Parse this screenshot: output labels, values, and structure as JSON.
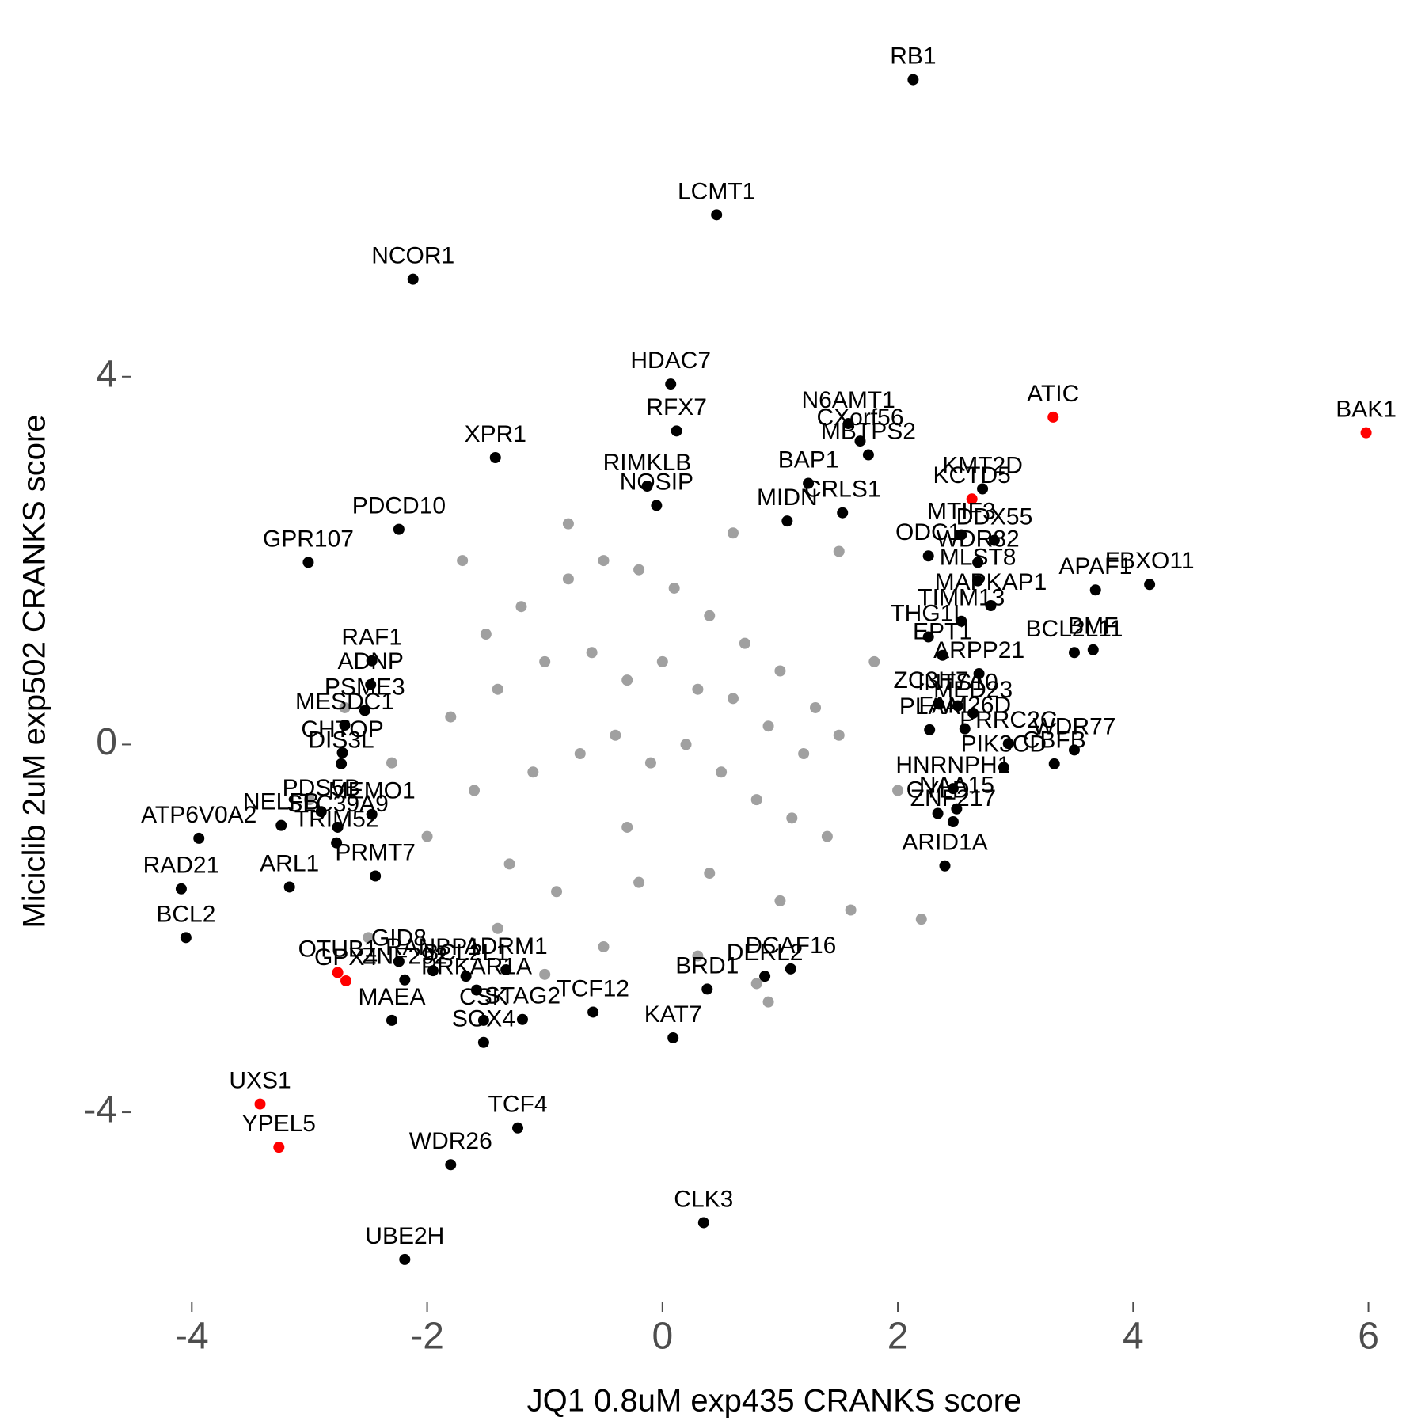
{
  "chart_data": {
    "type": "scatter",
    "xlabel": "JQ1 0.8uM exp435 CRANKS score",
    "ylabel": "Miciclib 2uM exp502 CRANKS score",
    "xlim": [
      -4.5,
      6.4
    ],
    "ylim": [
      -6.1,
      7.7
    ],
    "xticks": [
      -4,
      -2,
      0,
      2,
      4,
      6
    ],
    "yticks": [
      -4,
      0,
      4
    ],
    "grid": false,
    "background_points": {
      "color": "#a0a0a0",
      "x": [
        -1.5,
        -1.2,
        -0.8,
        -0.5,
        -0.2,
        0.1,
        0.4,
        0.7,
        1.0,
        1.3,
        -1.8,
        -1.4,
        -1.0,
        -0.6,
        -0.3,
        0.0,
        0.3,
        0.6,
        0.9,
        1.2,
        1.5,
        -1.6,
        -1.1,
        -0.7,
        -0.4,
        -0.1,
        0.2,
        0.5,
        0.8,
        1.1,
        1.4,
        -2.0,
        -1.3,
        -0.9,
        -0.2,
        0.4,
        1.0,
        1.6,
        -0.5,
        0.3,
        -1.0,
        0.8,
        -2.3,
        2.0,
        -0.8,
        0.6,
        -1.7,
        1.8,
        -2.5,
        2.2,
        -3.0,
        -2.7,
        1.5,
        -1.4,
        0.9,
        -0.3
      ],
      "y": [
        1.2,
        1.5,
        1.8,
        2.0,
        1.9,
        1.7,
        1.4,
        1.1,
        0.8,
        0.4,
        0.3,
        0.6,
        0.9,
        1.0,
        0.7,
        0.9,
        0.6,
        0.5,
        0.2,
        -0.1,
        0.1,
        -0.5,
        -0.3,
        -0.1,
        0.1,
        -0.2,
        0.0,
        -0.3,
        -0.6,
        -0.8,
        -1.0,
        -1.0,
        -1.3,
        -1.6,
        -1.5,
        -1.4,
        -1.7,
        -1.8,
        -2.2,
        -2.3,
        -2.5,
        -2.6,
        -0.2,
        -0.5,
        2.4,
        2.3,
        2.0,
        0.9,
        -2.1,
        -1.9,
        -0.6,
        0.4,
        2.1,
        -2.0,
        -2.8,
        -0.9
      ]
    },
    "points": [
      {
        "label": "RB1",
        "x": 2.13,
        "y": 7.23,
        "color": "#000000"
      },
      {
        "label": "LCMT1",
        "x": 0.46,
        "y": 5.76,
        "color": "#000000"
      },
      {
        "label": "NCOR1",
        "x": -2.12,
        "y": 5.06,
        "color": "#000000"
      },
      {
        "label": "HDAC7",
        "x": 0.07,
        "y": 3.92,
        "color": "#000000"
      },
      {
        "label": "ATIC",
        "x": 3.32,
        "y": 3.56,
        "color": "#ff0000"
      },
      {
        "label": "BAK1",
        "x": 5.98,
        "y": 3.39,
        "color": "#ff0000"
      },
      {
        "label": "XPR1",
        "x": -1.42,
        "y": 3.12,
        "color": "#000000"
      },
      {
        "label": "N6AMT1",
        "x": 1.58,
        "y": 3.49,
        "color": "#000000"
      },
      {
        "label": "MBTPS2",
        "x": 1.75,
        "y": 3.15,
        "color": "#000000"
      },
      {
        "label": "CXorf56",
        "x": 1.68,
        "y": 3.3,
        "color": "#000000"
      },
      {
        "label": "RFX7",
        "x": 0.12,
        "y": 3.41,
        "color": "#000000"
      },
      {
        "label": "KMT2D",
        "x": 2.72,
        "y": 2.78,
        "color": "#000000"
      },
      {
        "label": "KCTD5",
        "x": 2.63,
        "y": 2.67,
        "color": "#ff0000"
      },
      {
        "label": "RIMKLB",
        "x": -0.13,
        "y": 2.81,
        "color": "#000000"
      },
      {
        "label": "BAP1",
        "x": 1.24,
        "y": 2.84,
        "color": "#000000"
      },
      {
        "label": "PDCD10",
        "x": -2.24,
        "y": 2.34,
        "color": "#000000"
      },
      {
        "label": "NOSIP",
        "x": -0.05,
        "y": 2.6,
        "color": "#000000"
      },
      {
        "label": "MIDN",
        "x": 1.06,
        "y": 2.43,
        "color": "#000000"
      },
      {
        "label": "CRLS1",
        "x": 1.53,
        "y": 2.52,
        "color": "#000000"
      },
      {
        "label": "DDX55",
        "x": 2.82,
        "y": 2.22,
        "color": "#000000"
      },
      {
        "label": "MTIF3",
        "x": 2.54,
        "y": 2.28,
        "color": "#000000"
      },
      {
        "label": "GPR107",
        "x": -3.01,
        "y": 1.98,
        "color": "#000000"
      },
      {
        "label": "WDR82",
        "x": 2.68,
        "y": 1.98,
        "color": "#000000"
      },
      {
        "label": "APAF1",
        "x": 3.68,
        "y": 1.68,
        "color": "#000000"
      },
      {
        "label": "FBXO11",
        "x": 4.14,
        "y": 1.74,
        "color": "#000000"
      },
      {
        "label": "ODC1",
        "x": 2.26,
        "y": 2.05,
        "color": "#000000"
      },
      {
        "label": "MLST8",
        "x": 2.68,
        "y": 1.78,
        "color": "#000000"
      },
      {
        "label": "TIMM13",
        "x": 2.54,
        "y": 1.34,
        "color": "#000000"
      },
      {
        "label": "MAPKAP1",
        "x": 2.79,
        "y": 1.51,
        "color": "#000000"
      },
      {
        "label": "RAF1",
        "x": -2.47,
        "y": 0.91,
        "color": "#000000"
      },
      {
        "label": "ADNP",
        "x": -2.48,
        "y": 0.65,
        "color": "#000000"
      },
      {
        "label": "PSME3",
        "x": -2.53,
        "y": 0.37,
        "color": "#000000"
      },
      {
        "label": "THG1L",
        "x": 2.26,
        "y": 1.17,
        "color": "#000000"
      },
      {
        "label": "EPT1",
        "x": 2.38,
        "y": 0.97,
        "color": "#000000"
      },
      {
        "label": "ARPP21",
        "x": 2.69,
        "y": 0.77,
        "color": "#000000"
      },
      {
        "label": "BMF",
        "x": 3.66,
        "y": 1.03,
        "color": "#000000"
      },
      {
        "label": "BCL2L11",
        "x": 3.5,
        "y": 1.0,
        "color": "#000000"
      },
      {
        "label": "MESDC1",
        "x": -2.7,
        "y": 0.21,
        "color": "#000000"
      },
      {
        "label": "CHTOP",
        "x": -2.72,
        "y": -0.09,
        "color": "#000000"
      },
      {
        "label": "MED23",
        "x": 2.64,
        "y": 0.34,
        "color": "#000000"
      },
      {
        "label": "ZC3H7A",
        "x": 2.35,
        "y": 0.44,
        "color": "#000000"
      },
      {
        "label": "INTS10",
        "x": 2.51,
        "y": 0.42,
        "color": "#000000"
      },
      {
        "label": "PDS5B",
        "x": -2.9,
        "y": -0.73,
        "color": "#000000"
      },
      {
        "label": "PLAA",
        "x": 2.27,
        "y": 0.16,
        "color": "#000000"
      },
      {
        "label": "FAM26D",
        "x": 2.57,
        "y": 0.17,
        "color": "#000000"
      },
      {
        "label": "PRRC2C",
        "x": 2.94,
        "y": 0.01,
        "color": "#000000"
      },
      {
        "label": "WDR77",
        "x": 3.5,
        "y": -0.06,
        "color": "#000000"
      },
      {
        "label": "PIK3CD",
        "x": 2.9,
        "y": -0.25,
        "color": "#000000"
      },
      {
        "label": "CBFB",
        "x": 3.33,
        "y": -0.21,
        "color": "#000000"
      },
      {
        "label": "DIS3L",
        "x": -2.73,
        "y": -0.21,
        "color": "#000000"
      },
      {
        "label": "SLC39A9",
        "x": -2.76,
        "y": -0.9,
        "color": "#000000"
      },
      {
        "label": "NELFB",
        "x": -3.24,
        "y": -0.88,
        "color": "#000000"
      },
      {
        "label": "MEMO1",
        "x": -2.47,
        "y": -0.76,
        "color": "#000000"
      },
      {
        "label": "CYLD",
        "x": 2.34,
        "y": -0.75,
        "color": "#000000"
      },
      {
        "label": "ZNF217",
        "x": 2.47,
        "y": -0.84,
        "color": "#000000"
      },
      {
        "label": "HNRNPH1",
        "x": 2.47,
        "y": -0.48,
        "color": "#000000"
      },
      {
        "label": "NAA15",
        "x": 2.5,
        "y": -0.7,
        "color": "#000000"
      },
      {
        "label": "ARID1A",
        "x": 2.4,
        "y": -1.32,
        "color": "#000000"
      },
      {
        "label": "TRIM52",
        "x": -2.77,
        "y": -1.07,
        "color": "#000000"
      },
      {
        "label": "ATP6V0A2",
        "x": -3.94,
        "y": -1.02,
        "color": "#000000"
      },
      {
        "label": "ARL1",
        "x": -3.17,
        "y": -1.55,
        "color": "#000000"
      },
      {
        "label": "PRMT7",
        "x": -2.44,
        "y": -1.43,
        "color": "#000000"
      },
      {
        "label": "RAD21",
        "x": -4.09,
        "y": -1.57,
        "color": "#000000"
      },
      {
        "label": "BCL2",
        "x": -4.05,
        "y": -2.1,
        "color": "#000000"
      },
      {
        "label": "RANBP1",
        "x": -1.95,
        "y": -2.46,
        "color": "#000000"
      },
      {
        "label": "ADRM1",
        "x": -1.33,
        "y": -2.45,
        "color": "#000000"
      },
      {
        "label": "BCL2L1",
        "x": -1.67,
        "y": -2.52,
        "color": "#000000"
      },
      {
        "label": "GID8",
        "x": -2.24,
        "y": -2.36,
        "color": "#000000"
      },
      {
        "label": "OTUB1",
        "x": -2.76,
        "y": -2.48,
        "color": "#ff0000"
      },
      {
        "label": "GPX4",
        "x": -2.69,
        "y": -2.57,
        "color": "#ff0000"
      },
      {
        "label": "TCF12",
        "x": -0.59,
        "y": -2.91,
        "color": "#000000"
      },
      {
        "label": "STAG2",
        "x": -1.19,
        "y": -2.99,
        "color": "#000000"
      },
      {
        "label": "ZNF292",
        "x": -2.19,
        "y": -2.56,
        "color": "#000000"
      },
      {
        "label": "MAEA",
        "x": -2.3,
        "y": -3.0,
        "color": "#000000"
      },
      {
        "label": "CSK",
        "x": -1.52,
        "y": -3.0,
        "color": "#000000"
      },
      {
        "label": "SOX4",
        "x": -1.52,
        "y": -3.24,
        "color": "#000000"
      },
      {
        "label": "KAT7",
        "x": 0.09,
        "y": -3.19,
        "color": "#000000"
      },
      {
        "label": "DCAF16",
        "x": 1.09,
        "y": -2.44,
        "color": "#000000"
      },
      {
        "label": "DERL2",
        "x": 0.87,
        "y": -2.52,
        "color": "#000000"
      },
      {
        "label": "BRD1",
        "x": 0.38,
        "y": -2.66,
        "color": "#000000"
      },
      {
        "label": "PRKAR1A",
        "x": -1.58,
        "y": -2.67,
        "color": "#000000"
      },
      {
        "label": "UXS1",
        "x": -3.42,
        "y": -3.91,
        "color": "#ff0000"
      },
      {
        "label": "YPEL5",
        "x": -3.26,
        "y": -4.38,
        "color": "#ff0000"
      },
      {
        "label": "TCF4",
        "x": -1.23,
        "y": -4.17,
        "color": "#000000"
      },
      {
        "label": "WDR26",
        "x": -1.8,
        "y": -4.57,
        "color": "#000000"
      },
      {
        "label": "CLK3",
        "x": 0.35,
        "y": -5.2,
        "color": "#000000"
      },
      {
        "label": "UBE2H",
        "x": -2.19,
        "y": -5.6,
        "color": "#000000"
      }
    ]
  }
}
